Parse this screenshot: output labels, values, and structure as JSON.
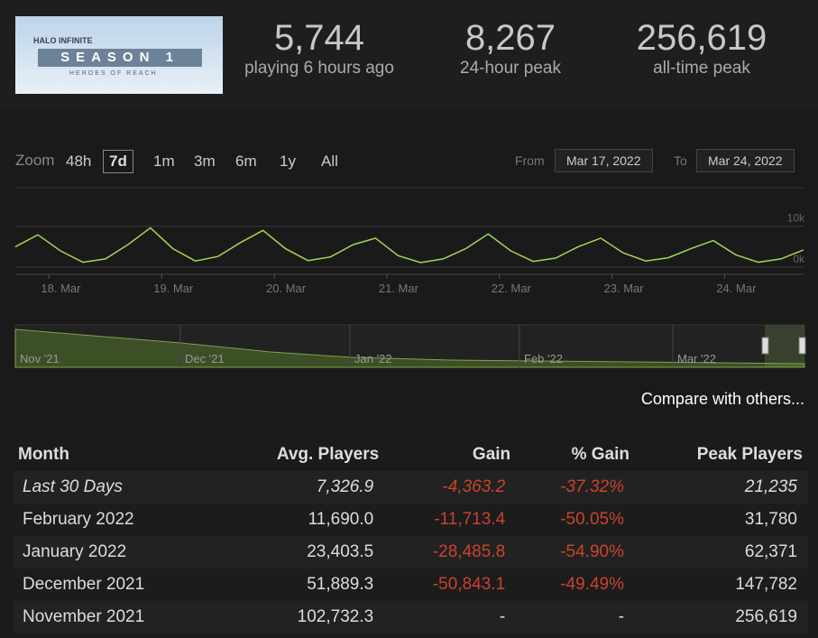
{
  "header": {
    "image_text": [
      "HALO INFINITE",
      "SEASON 1",
      "HEROES OF REACH"
    ],
    "stats": [
      {
        "value": "5,744",
        "label": "playing 6 hours ago"
      },
      {
        "value": "8,267",
        "label": "24-hour peak"
      },
      {
        "value": "256,619",
        "label": "all-time peak"
      }
    ]
  },
  "zoom": {
    "label": "Zoom",
    "options": [
      "48h",
      "7d",
      "1m",
      "3m",
      "6m",
      "1y",
      "All"
    ],
    "selected": 1
  },
  "range": {
    "from_label": "From",
    "from": "Mar 17, 2022",
    "to_label": "To",
    "to": "Mar 24, 2022"
  },
  "chart_data": {
    "type": "line",
    "color": "#a4d653",
    "x": [
      17.7,
      17.9,
      18.1,
      18.3,
      18.5,
      18.7,
      18.9,
      19.1,
      19.3,
      19.5,
      19.7,
      19.9,
      20.1,
      20.3,
      20.5,
      20.7,
      20.9,
      21.1,
      21.3,
      21.5,
      21.7,
      21.9,
      22.1,
      22.3,
      22.5,
      22.7,
      22.9,
      23.1,
      23.3,
      23.5,
      23.7,
      23.9,
      24.1,
      24.3,
      24.5,
      24.7
    ],
    "values": [
      5000,
      7900,
      4000,
      1200,
      2000,
      5500,
      9600,
      4500,
      1500,
      2600,
      6000,
      9000,
      4500,
      1600,
      2500,
      5500,
      7100,
      2800,
      1100,
      2000,
      4500,
      8100,
      4000,
      1400,
      2200,
      5000,
      7100,
      3500,
      1500,
      2300,
      4500,
      6500,
      3000,
      1200,
      2000,
      4200
    ],
    "xlim": [
      17.7,
      24.71
    ],
    "ylim": [
      0,
      19000
    ],
    "xticks": [
      {
        "value": 18,
        "label": "18. Mar"
      },
      {
        "value": 19,
        "label": "19. Mar"
      },
      {
        "value": 20,
        "label": "20. Mar"
      },
      {
        "value": 21,
        "label": "21. Mar"
      },
      {
        "value": 22,
        "label": "22. Mar"
      },
      {
        "value": 23,
        "label": "23. Mar"
      },
      {
        "value": 24,
        "label": "24. Mar"
      }
    ],
    "yticks": [
      {
        "value": 0,
        "label": "0k"
      },
      {
        "value": 10000,
        "label": "10k"
      }
    ],
    "grid": true
  },
  "navigator": {
    "labels": [
      "Nov '21",
      "Dec '21",
      "Jan '22",
      "Feb '22",
      "Mar '22"
    ]
  },
  "compare": "Compare with others...",
  "table": {
    "columns": [
      "Month",
      "Avg. Players",
      "Gain",
      "% Gain",
      "Peak Players"
    ],
    "rows": [
      [
        "Last 30 Days",
        "7,326.9",
        "-4,363.2",
        "-37.32%",
        "21,235"
      ],
      [
        "February 2022",
        "11,690.0",
        "-11,713.4",
        "-50.05%",
        "31,780"
      ],
      [
        "January 2022",
        "23,403.5",
        "-28,485.8",
        "-54.90%",
        "62,371"
      ],
      [
        "December 2021",
        "51,889.3",
        "-50,843.1",
        "-49.49%",
        "147,782"
      ],
      [
        "November 2021",
        "102,732.3",
        "-",
        "-",
        "256,619"
      ]
    ]
  }
}
